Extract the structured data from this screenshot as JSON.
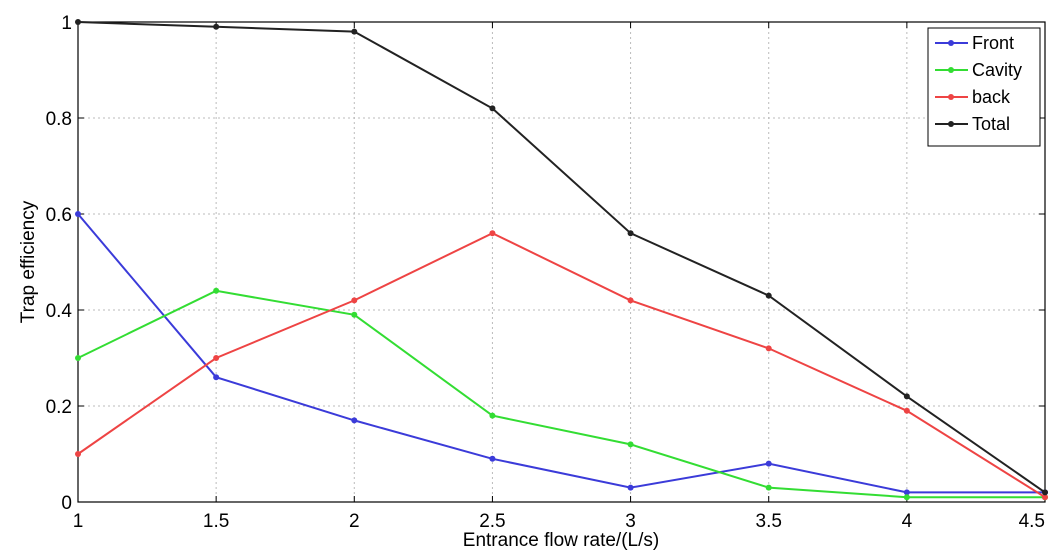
{
  "chart_data": {
    "type": "line",
    "title": "",
    "xlabel": "Entrance flow rate/(L/s)",
    "ylabel": "Trap efficiency",
    "x": [
      1,
      1.5,
      2,
      2.5,
      3,
      3.5,
      4,
      4.5
    ],
    "xlim": [
      1,
      4.5
    ],
    "ylim": [
      0,
      1
    ],
    "xticks": [
      1,
      1.5,
      2,
      2.5,
      3,
      3.5,
      4,
      4.5
    ],
    "xtick_labels": [
      "1",
      "1.5",
      "2",
      "2.5",
      "3",
      "3.5",
      "4",
      "4.5"
    ],
    "yticks": [
      0,
      0.2,
      0.4,
      0.6,
      0.8,
      1
    ],
    "ytick_labels": [
      "0",
      "0.2",
      "0.4",
      "0.6",
      "0.8",
      "1"
    ],
    "grid": true,
    "legend_position": "top-right",
    "series": [
      {
        "name": "Front",
        "color": "#3b3bd9",
        "values": [
          0.6,
          0.26,
          0.17,
          0.09,
          0.03,
          0.08,
          0.02,
          0.02
        ]
      },
      {
        "name": "Cavity",
        "color": "#33dd33",
        "values": [
          0.3,
          0.44,
          0.39,
          0.18,
          0.12,
          0.03,
          0.01,
          0.01
        ]
      },
      {
        "name": "back",
        "color": "#ee4444",
        "values": [
          0.1,
          0.3,
          0.42,
          0.56,
          0.42,
          0.32,
          0.19,
          0.01
        ]
      },
      {
        "name": "Total",
        "color": "#222222",
        "values": [
          1.0,
          0.99,
          0.98,
          0.82,
          0.56,
          0.43,
          0.22,
          0.02
        ]
      }
    ]
  }
}
